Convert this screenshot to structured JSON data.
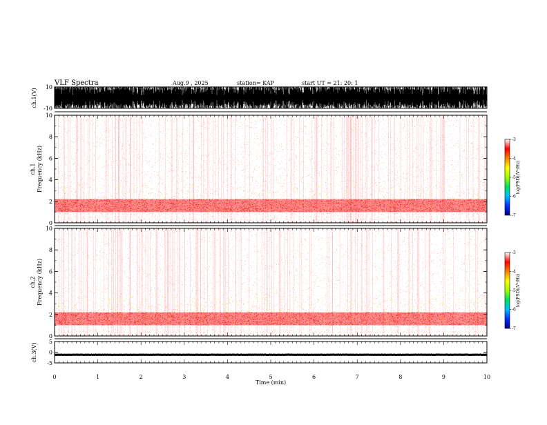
{
  "header": {
    "title": "VLF Spectra",
    "date": "Aug.9 , 2025",
    "station": "station= KAP",
    "start": "start UT = 21: 20: 1"
  },
  "colors": {
    "background": "#ffffff",
    "axes": "#000000",
    "waveform": "#000000",
    "spectrogram_base": "#ff3030",
    "spectrogram_hot": "#ffe000",
    "colorbar": [
      "#000080",
      "#0030ff",
      "#00c0ff",
      "#00e060",
      "#a0ff00",
      "#ffff00",
      "#ff8000",
      "#ff0000",
      "#ffffff"
    ]
  },
  "chart_data": [
    {
      "type": "line",
      "panel": "waveform-ch1",
      "ylabel": "ch.1(V)",
      "ylim": [
        -10,
        10
      ],
      "y_ticks": [
        "10",
        "-10"
      ],
      "x_range_min": [
        0,
        10
      ]
    },
    {
      "type": "heatmap",
      "panel": "spectrogram-ch1",
      "ylabel_line1": "ch.1",
      "ylabel_line2": "Frequency (kHz)",
      "ylim_khz": [
        0,
        10
      ],
      "y_ticks": [
        "0",
        "2",
        "4",
        "6",
        "8",
        "10"
      ],
      "dominant_band_khz": [
        1,
        2.2
      ],
      "colorbar": {
        "label": "log(PSD)(V²/Hz)",
        "range": [
          -7,
          -3
        ],
        "ticks": [
          "-3",
          "-4",
          "-5",
          "-6",
          "-7"
        ]
      }
    },
    {
      "type": "heatmap",
      "panel": "spectrogram-ch2",
      "ylabel_line1": "ch.2",
      "ylabel_line2": "Frequency (kHz)",
      "ylim_khz": [
        0,
        10
      ],
      "y_ticks": [
        "0",
        "2",
        "4",
        "6",
        "8",
        "10"
      ],
      "dominant_band_khz": [
        1,
        2.2
      ],
      "colorbar": {
        "label": "log(PSD)(V²/Hz)",
        "range": [
          -7,
          -3
        ],
        "ticks": [
          "-3",
          "-4",
          "-5",
          "-6",
          "-7"
        ]
      }
    },
    {
      "type": "line",
      "panel": "waveform-ch3",
      "ylabel": "ch.3(V)",
      "ylim": [
        -5,
        5
      ],
      "y_ticks": [
        "5",
        "0",
        "-5"
      ],
      "x_range_min": [
        0,
        10
      ]
    }
  ],
  "xaxis": {
    "label": "Time (min)",
    "ticks": [
      "0",
      "1",
      "2",
      "3",
      "4",
      "5",
      "6",
      "7",
      "8",
      "9",
      "10"
    ],
    "range": [
      0,
      10
    ]
  }
}
